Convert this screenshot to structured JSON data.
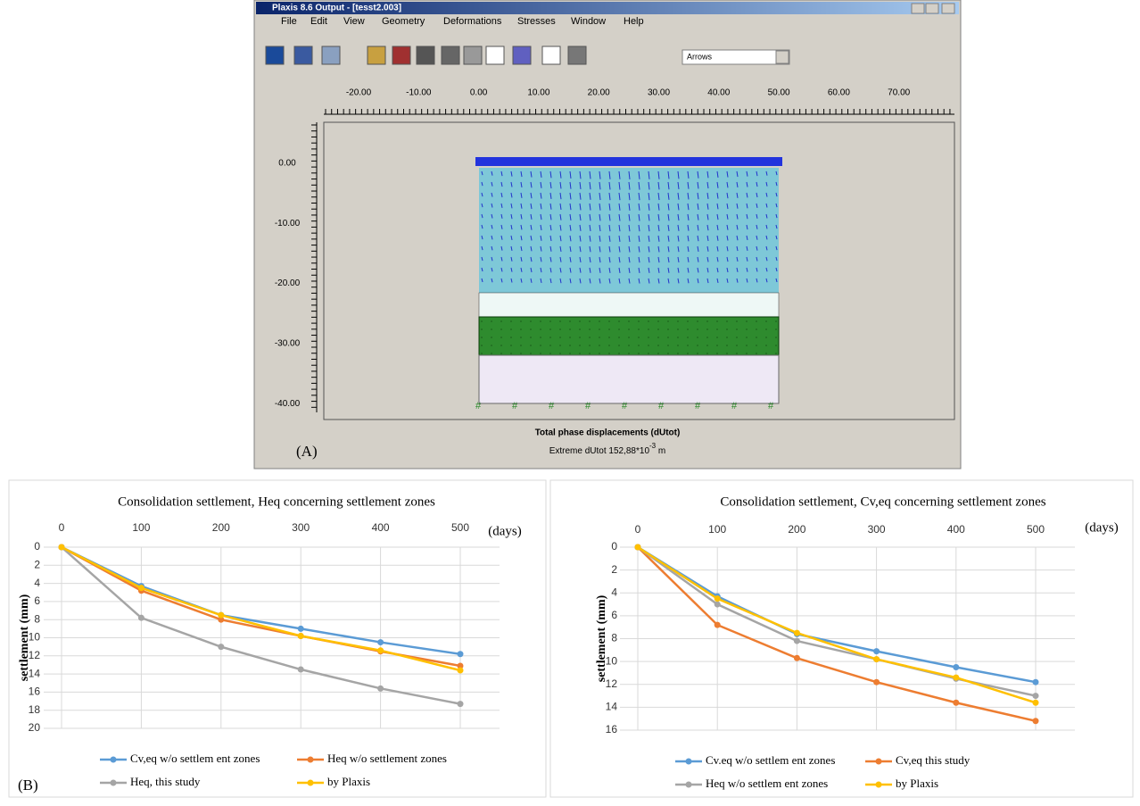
{
  "screenshot": {
    "window_title": "Plaxis 8.6 Output - [tesst2.003]",
    "menu": [
      "File",
      "Edit",
      "View",
      "Geometry",
      "Deformations",
      "Stresses",
      "Window",
      "Help"
    ],
    "dropdown": "Arrows",
    "ruler_x": [
      "-20.00",
      "-10.00",
      "0.00",
      "10.00",
      "20.00",
      "30.00",
      "40.00",
      "50.00",
      "60.00",
      "70.00"
    ],
    "ruler_y": [
      "0.00",
      "-10.00",
      "-20.00",
      "-30.00",
      "-40.00"
    ],
    "caption": "Total phase displacements (dUtot)",
    "extreme": "Extreme dUtot 152,88*10",
    "exponent": "-3",
    "unit": "m"
  },
  "panel_labels": {
    "a": "(A)",
    "b": "(B)"
  },
  "chart_data": [
    {
      "type": "line",
      "title": "Consolidation  settlement, Heq concerning settlement zones",
      "x_label": "(days)",
      "y_label": "settlement (mm)",
      "x": [
        0,
        100,
        200,
        300,
        400,
        500
      ],
      "xlim": [
        0,
        500
      ],
      "xticks": [
        0,
        100,
        200,
        300,
        400,
        500
      ],
      "ylim": [
        0,
        20
      ],
      "yticks": [
        0,
        2,
        4,
        6,
        8,
        10,
        12,
        14,
        16,
        18,
        20
      ],
      "y_reversed": true,
      "grid": true,
      "series": [
        {
          "name": "Cv,eq w/o settlem ent zones",
          "color": "#5b9bd5",
          "values": [
            0,
            4.3,
            7.5,
            9.0,
            10.5,
            11.8
          ]
        },
        {
          "name": "Heq w/o settlement zones",
          "color": "#ed7d31",
          "values": [
            0,
            4.8,
            8.0,
            9.8,
            11.5,
            13.1
          ]
        },
        {
          "name": "Heq, this study",
          "color": "#a5a5a5",
          "values": [
            0,
            7.8,
            11.0,
            13.5,
            15.6,
            17.3
          ]
        },
        {
          "name": "by Plaxis",
          "color": "#ffc000",
          "values": [
            0,
            4.5,
            7.5,
            9.8,
            11.4,
            13.6
          ]
        }
      ]
    },
    {
      "type": "line",
      "title": "Consolidation  settlement, Cv,eq concerning settlement zones",
      "x_label": "(days)",
      "y_label": "settlement (mm)",
      "x": [
        0,
        100,
        200,
        300,
        400,
        500
      ],
      "xlim": [
        0,
        500
      ],
      "xticks": [
        0,
        100,
        200,
        300,
        400,
        500
      ],
      "ylim": [
        0,
        16
      ],
      "yticks": [
        0,
        2,
        4,
        6,
        8,
        10,
        12,
        14,
        16
      ],
      "y_reversed": true,
      "grid": true,
      "series": [
        {
          "name": "Cv.eq w/o settlem ent zones",
          "color": "#5b9bd5",
          "values": [
            0,
            4.3,
            7.6,
            9.1,
            10.5,
            11.8
          ]
        },
        {
          "name": "Cv,eq this study",
          "color": "#ed7d31",
          "values": [
            0,
            6.8,
            9.7,
            11.8,
            13.6,
            15.2
          ]
        },
        {
          "name": "Heq w/o settlem ent zones",
          "color": "#a5a5a5",
          "values": [
            0,
            5.0,
            8.2,
            9.8,
            11.5,
            13.0
          ]
        },
        {
          "name": "by Plaxis",
          "color": "#ffc000",
          "values": [
            0,
            4.5,
            7.5,
            9.8,
            11.4,
            13.6
          ]
        }
      ]
    }
  ]
}
